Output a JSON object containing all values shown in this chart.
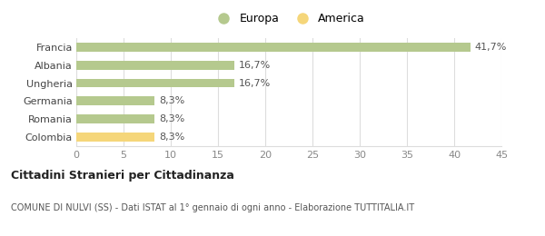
{
  "categories": [
    "Francia",
    "Albania",
    "Ungheria",
    "Germania",
    "Romania",
    "Colombia"
  ],
  "values": [
    41.7,
    16.7,
    16.7,
    8.3,
    8.3,
    8.3
  ],
  "labels": [
    "41,7%",
    "16,7%",
    "16,7%",
    "8,3%",
    "8,3%",
    "8,3%"
  ],
  "bar_colors": [
    "#b5c98e",
    "#b5c98e",
    "#b5c98e",
    "#b5c98e",
    "#b5c98e",
    "#f5d67a"
  ],
  "legend_items": [
    {
      "label": "Europa",
      "color": "#b5c98e"
    },
    {
      "label": "America",
      "color": "#f5d67a"
    }
  ],
  "xlim": [
    0,
    45
  ],
  "xticks": [
    0,
    5,
    10,
    15,
    20,
    25,
    30,
    35,
    40,
    45
  ],
  "title_main": "Cittadini Stranieri per Cittadinanza",
  "title_sub": "COMUNE DI NULVI (SS) - Dati ISTAT al 1° gennaio di ogni anno - Elaborazione TUTTITALIA.IT",
  "background_color": "#ffffff",
  "grid_color": "#dddddd",
  "label_fontsize": 8,
  "tick_fontsize": 8,
  "bar_height": 0.5
}
